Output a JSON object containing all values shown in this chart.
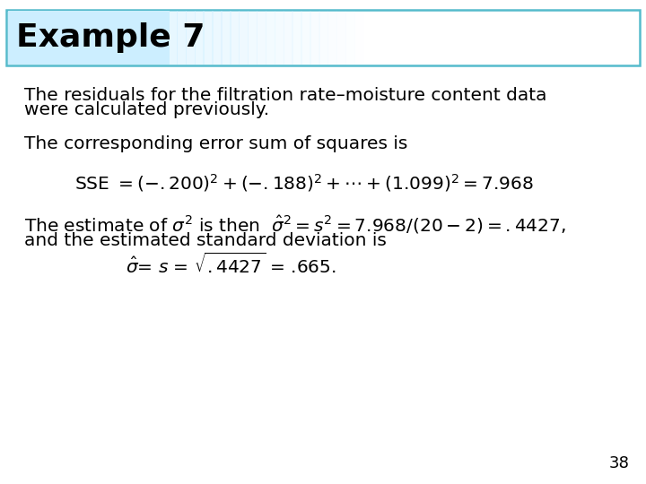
{
  "title": "Example 7",
  "title_box_facecolor": "#cceeff",
  "title_box_edgecolor": "#55bbcc",
  "title_fontsize": 26,
  "body_fontsize": 14.5,
  "page_number": "38",
  "background_color": "#ffffff",
  "text_color": "#000000",
  "para1_line1": "The residuals for the filtration rate–moisture content data",
  "para1_line2": "were calculated previously.",
  "para2": "The corresponding error sum of squares is",
  "para4": "and the estimated standard deviation is",
  "page_num_fontsize": 13
}
